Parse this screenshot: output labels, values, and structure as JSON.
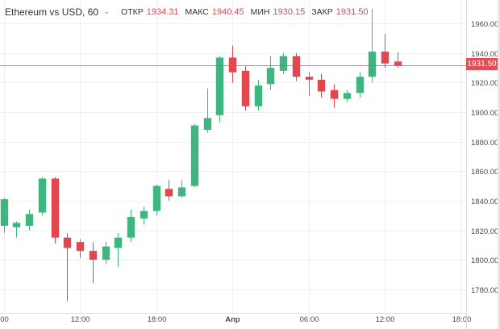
{
  "legend": {
    "symbol": "Ethereum vs USD, 60",
    "open_label": "ОТКР",
    "open_value": "1934.31",
    "high_label": "МАКС",
    "high_value": "1940.45",
    "low_label": "МИН",
    "low_value": "1930.15",
    "close_label": "ЗАКР",
    "close_value": "1931.50"
  },
  "current_price_label": "1931.50",
  "colors": {
    "up": "#3fb67f",
    "down": "#e2474f",
    "grid": "#eef0f3",
    "price_line": "#e44d58",
    "axis_text": "#4a4a4a"
  },
  "chart_data": {
    "type": "candlestick",
    "title": "Ethereum vs USD, 60",
    "y_axis": {
      "range": [
        1764,
        1976
      ],
      "ticks": [
        1780,
        1800,
        1820,
        1840,
        1860,
        1880,
        1900,
        1920,
        1940,
        1960
      ],
      "tick_labels": [
        "1780.00",
        "1800.00",
        "1820.00",
        "1840.00",
        "1860.00",
        "1880.00",
        "1900.00",
        "1920.00",
        "1940.00",
        "1960.00"
      ]
    },
    "x_axis": {
      "ticks": [
        {
          "hour": -18,
          "label": "00"
        },
        {
          "hour": -12,
          "label": "12:00"
        },
        {
          "hour": -6,
          "label": "18:00"
        },
        {
          "hour": 0,
          "label": "Апр"
        },
        {
          "hour": 6,
          "label": "06:00"
        },
        {
          "hour": 12,
          "label": "12:00"
        },
        {
          "hour": 18,
          "label": "18:00"
        }
      ],
      "range": [
        -18.3,
        18.4
      ]
    },
    "current_price": 1931.5,
    "grid": true,
    "candles": [
      {
        "hour": -18,
        "open": 1823,
        "high": 1842,
        "low": 1818,
        "close": 1841
      },
      {
        "hour": -17,
        "open": 1822,
        "high": 1826,
        "low": 1815,
        "close": 1825
      },
      {
        "hour": -16,
        "open": 1823,
        "high": 1834,
        "low": 1820,
        "close": 1831
      },
      {
        "hour": -15,
        "open": 1832,
        "high": 1856,
        "low": 1830,
        "close": 1855
      },
      {
        "hour": -14,
        "open": 1855,
        "high": 1856,
        "low": 1811,
        "close": 1815
      },
      {
        "hour": -13,
        "open": 1815,
        "high": 1818,
        "low": 1772,
        "close": 1808
      },
      {
        "hour": -12,
        "open": 1812,
        "high": 1814,
        "low": 1801,
        "close": 1806
      },
      {
        "hour": -11,
        "open": 1806,
        "high": 1812,
        "low": 1784,
        "close": 1800
      },
      {
        "hour": -10,
        "open": 1800,
        "high": 1812,
        "low": 1797,
        "close": 1809
      },
      {
        "hour": -9,
        "open": 1808,
        "high": 1818,
        "low": 1795,
        "close": 1815
      },
      {
        "hour": -8,
        "open": 1815,
        "high": 1834,
        "low": 1812,
        "close": 1829
      },
      {
        "hour": -7,
        "open": 1828,
        "high": 1836,
        "low": 1824,
        "close": 1833
      },
      {
        "hour": -6,
        "open": 1833,
        "high": 1851,
        "low": 1830,
        "close": 1850
      },
      {
        "hour": -5,
        "open": 1848,
        "high": 1854,
        "low": 1840,
        "close": 1843
      },
      {
        "hour": -4,
        "open": 1843,
        "high": 1854,
        "low": 1842,
        "close": 1849
      },
      {
        "hour": -3,
        "open": 1850,
        "high": 1892,
        "low": 1849,
        "close": 1891
      },
      {
        "hour": -2,
        "open": 1888,
        "high": 1916,
        "low": 1886,
        "close": 1896
      },
      {
        "hour": -1,
        "open": 1898,
        "high": 1938,
        "low": 1893,
        "close": 1937
      },
      {
        "hour": 0,
        "open": 1937,
        "high": 1945,
        "low": 1920,
        "close": 1927
      },
      {
        "hour": 1,
        "open": 1928,
        "high": 1931,
        "low": 1901,
        "close": 1904
      },
      {
        "hour": 2,
        "open": 1904,
        "high": 1922,
        "low": 1901,
        "close": 1918
      },
      {
        "hour": 3,
        "open": 1919,
        "high": 1938,
        "low": 1915,
        "close": 1930
      },
      {
        "hour": 4,
        "open": 1928,
        "high": 1940,
        "low": 1926,
        "close": 1938
      },
      {
        "hour": 5,
        "open": 1938,
        "high": 1940,
        "low": 1921,
        "close": 1924
      },
      {
        "hour": 6,
        "open": 1924,
        "high": 1927,
        "low": 1911,
        "close": 1922
      },
      {
        "hour": 7,
        "open": 1922,
        "high": 1926,
        "low": 1910,
        "close": 1914
      },
      {
        "hour": 8,
        "open": 1915,
        "high": 1919,
        "low": 1903,
        "close": 1909
      },
      {
        "hour": 9,
        "open": 1909,
        "high": 1915,
        "low": 1907,
        "close": 1913
      },
      {
        "hour": 10,
        "open": 1913,
        "high": 1927,
        "low": 1910,
        "close": 1924
      },
      {
        "hour": 11,
        "open": 1924,
        "high": 1970,
        "low": 1920,
        "close": 1941
      },
      {
        "hour": 12,
        "open": 1941,
        "high": 1953,
        "low": 1930,
        "close": 1933
      },
      {
        "hour": 13,
        "open": 1934.31,
        "high": 1940.45,
        "low": 1930.15,
        "close": 1931.5
      }
    ]
  }
}
